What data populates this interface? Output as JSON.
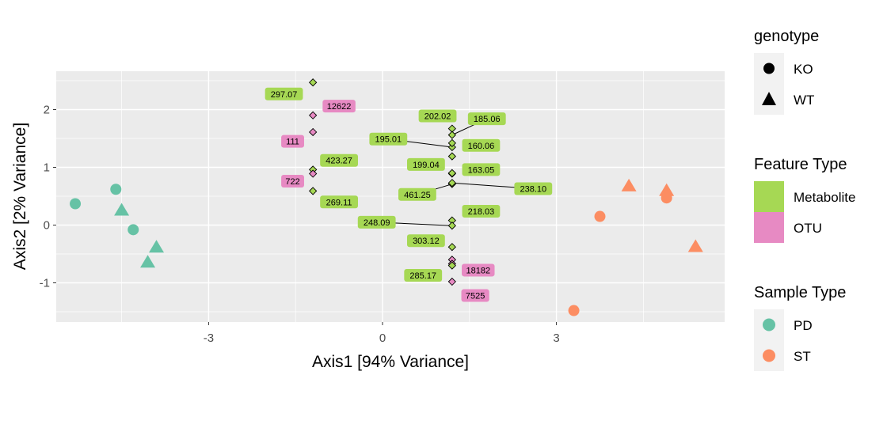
{
  "chart_data": {
    "type": "scatter",
    "xlabel": "Axis1 [94% Variance]",
    "ylabel": "Axis2 [2% Variance]",
    "xlim": [
      -5.5,
      6.1
    ],
    "ylim": [
      -1.65,
      2.65
    ],
    "x_ticks": [
      -3,
      0,
      3
    ],
    "y_ticks": [
      -1,
      0,
      1,
      2
    ],
    "grid": true,
    "colors": {
      "PD": "#66C2A5",
      "ST": "#FC8D62",
      "Metabolite": "#A6D854",
      "OTU": "#E78AC3",
      "panel": "#EBEBEB",
      "grid": "#FFFFFF"
    },
    "samples": [
      {
        "x": -5.3,
        "y": 0.37,
        "genotype": "KO",
        "sample_type": "PD"
      },
      {
        "x": -4.6,
        "y": 0.62,
        "genotype": "KO",
        "sample_type": "PD"
      },
      {
        "x": -4.5,
        "y": 0.26,
        "genotype": "WT",
        "sample_type": "PD"
      },
      {
        "x": -4.3,
        "y": -0.08,
        "genotype": "KO",
        "sample_type": "PD"
      },
      {
        "x": -3.9,
        "y": -0.38,
        "genotype": "WT",
        "sample_type": "PD"
      },
      {
        "x": -4.05,
        "y": -0.64,
        "genotype": "WT",
        "sample_type": "PD"
      },
      {
        "x": 3.3,
        "y": -1.48,
        "genotype": "KO",
        "sample_type": "ST"
      },
      {
        "x": 3.75,
        "y": 0.15,
        "genotype": "KO",
        "sample_type": "ST"
      },
      {
        "x": 4.25,
        "y": 0.68,
        "genotype": "WT",
        "sample_type": "ST"
      },
      {
        "x": 4.9,
        "y": 0.6,
        "genotype": "WT",
        "sample_type": "ST"
      },
      {
        "x": 4.9,
        "y": 0.47,
        "genotype": "KO",
        "sample_type": "ST"
      },
      {
        "x": 5.4,
        "y": -0.37,
        "genotype": "WT",
        "sample_type": "ST"
      }
    ],
    "features": [
      {
        "label": "297.07",
        "type": "Metabolite",
        "x": -1.2,
        "y": 2.47,
        "label_x": -1.7,
        "label_y": 2.27
      },
      {
        "label": "12622",
        "type": "OTU",
        "x": -1.2,
        "y": 1.9,
        "label_x": -0.75,
        "label_y": 2.06
      },
      {
        "label": "111",
        "type": "OTU",
        "x": -1.2,
        "y": 1.61,
        "label_x": -1.55,
        "label_y": 1.45
      },
      {
        "label": "423.27",
        "type": "Metabolite",
        "x": -1.2,
        "y": 0.96,
        "label_x": -0.75,
        "label_y": 1.12
      },
      {
        "label": "722",
        "type": "OTU",
        "x": -1.2,
        "y": 0.89,
        "label_x": -1.55,
        "label_y": 0.76
      },
      {
        "label": "269.11",
        "type": "Metabolite",
        "x": -1.2,
        "y": 0.59,
        "label_x": -0.75,
        "label_y": 0.4
      },
      {
        "label": "202.02",
        "type": "Metabolite",
        "x": 1.2,
        "y": 1.67,
        "label_x": 0.95,
        "label_y": 1.89
      },
      {
        "label": "185.06",
        "type": "Metabolite",
        "x": 1.2,
        "y": 1.56,
        "label_x": 1.8,
        "label_y": 1.84
      },
      {
        "label": "195.01",
        "type": "Metabolite",
        "x": 1.2,
        "y": 1.35,
        "label_x": 0.1,
        "label_y": 1.49
      },
      {
        "label": "160.06",
        "type": "Metabolite",
        "x": 1.2,
        "y": 1.42,
        "label_x": 1.7,
        "label_y": 1.38
      },
      {
        "label": "",
        "type": "Metabolite",
        "x": 1.2,
        "y": 1.19
      },
      {
        "label": "199.04",
        "type": "Metabolite",
        "x": 1.2,
        "y": 0.89,
        "label_x": 0.75,
        "label_y": 1.05
      },
      {
        "label": "163.05",
        "type": "Metabolite",
        "x": 1.2,
        "y": 0.9,
        "label_x": 1.7,
        "label_y": 0.96
      },
      {
        "label": "461.25",
        "type": "Metabolite",
        "x": 1.2,
        "y": 0.71,
        "label_x": 0.6,
        "label_y": 0.53
      },
      {
        "label": "238.10",
        "type": "Metabolite",
        "x": 1.2,
        "y": 0.73,
        "label_x": 2.6,
        "label_y": 0.63
      },
      {
        "label": "218.03",
        "type": "Metabolite",
        "x": 1.2,
        "y": 0.08,
        "label_x": 1.7,
        "label_y": 0.24
      },
      {
        "label": "248.09",
        "type": "Metabolite",
        "x": 1.2,
        "y": -0.01,
        "label_x": -0.1,
        "label_y": 0.05
      },
      {
        "label": "303.12",
        "type": "Metabolite",
        "x": 1.2,
        "y": -0.38,
        "label_x": 0.75,
        "label_y": -0.27
      },
      {
        "label": "",
        "type": "OTU",
        "x": 1.2,
        "y": -0.6
      },
      {
        "label": "18182",
        "type": "OTU",
        "x": 1.2,
        "y": -0.67,
        "label_x": 1.65,
        "label_y": -0.78
      },
      {
        "label": "285.17",
        "type": "Metabolite",
        "x": 1.2,
        "y": -0.7,
        "label_x": 0.7,
        "label_y": -0.87
      },
      {
        "label": "7525",
        "type": "OTU",
        "x": 1.2,
        "y": -0.98,
        "label_x": 1.6,
        "label_y": -1.22
      }
    ],
    "legend": {
      "genotype": {
        "title": "genotype",
        "items": [
          "KO",
          "WT"
        ]
      },
      "feature_type": {
        "title": "Feature Type",
        "items": [
          "Metabolite",
          "OTU"
        ]
      },
      "sample_type": {
        "title": "Sample Type",
        "items": [
          "PD",
          "ST"
        ]
      }
    }
  }
}
